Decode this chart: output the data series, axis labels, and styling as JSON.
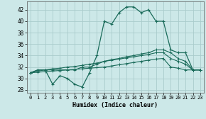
{
  "xlabel": "Humidex (Indice chaleur)",
  "xlim": [
    -0.5,
    23.5
  ],
  "ylim": [
    27.5,
    43.5
  ],
  "yticks": [
    28,
    30,
    32,
    34,
    36,
    38,
    40,
    42
  ],
  "xticks": [
    0,
    1,
    2,
    3,
    4,
    5,
    6,
    7,
    8,
    9,
    10,
    11,
    12,
    13,
    14,
    15,
    16,
    17,
    18,
    19,
    20,
    21,
    22,
    23
  ],
  "bg_color": "#cce8e8",
  "grid_color": "#aacccc",
  "line_color": "#1a6b5a",
  "series": [
    [
      31,
      31.5,
      31.5,
      29,
      30.5,
      30,
      29,
      28.5,
      31,
      34,
      40,
      39.5,
      41.5,
      42.5,
      42.5,
      41.5,
      42,
      40,
      40,
      35,
      34.5,
      34.5,
      31.5,
      31.5
    ],
    [
      31,
      31.5,
      31.5,
      31.5,
      31.5,
      31.5,
      31.5,
      32,
      32,
      32.5,
      33,
      33.3,
      33.5,
      33.8,
      34,
      34.3,
      34.5,
      35,
      35,
      34.5,
      33.5,
      33,
      31.5,
      31.5
    ],
    [
      31,
      31.3,
      31.5,
      31.7,
      31.8,
      32,
      32.1,
      32.3,
      32.5,
      32.7,
      33,
      33.2,
      33.4,
      33.6,
      33.8,
      34,
      34.2,
      34.5,
      34.5,
      33.5,
      33.0,
      32.5,
      31.5,
      31.5
    ],
    [
      31,
      31.1,
      31.2,
      31.3,
      31.4,
      31.5,
      31.6,
      31.7,
      31.8,
      31.9,
      32.0,
      32.2,
      32.4,
      32.6,
      32.8,
      33.0,
      33.2,
      33.4,
      33.5,
      32.0,
      31.8,
      31.5,
      31.5,
      31.5
    ]
  ]
}
